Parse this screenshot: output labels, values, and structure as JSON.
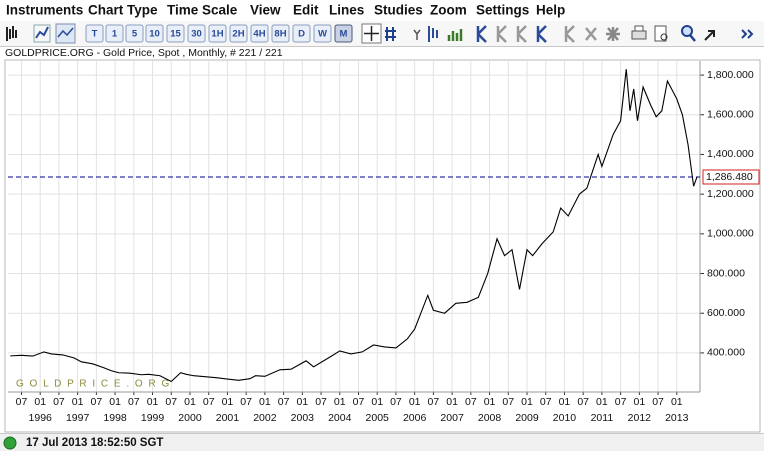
{
  "menu": [
    "Instruments",
    "Chart Type",
    "Time Scale",
    "View",
    "Edit",
    "Lines",
    "Studies",
    "Zoom",
    "Settings",
    "Help"
  ],
  "toolbar": {
    "buttons": [
      "T",
      "1",
      "5",
      "10",
      "15",
      "30",
      "1H",
      "2H",
      "4H",
      "8H",
      "D",
      "W",
      "M"
    ],
    "selected": "M"
  },
  "status": {
    "time": "17 Jul 2013 18:52:50 SGT"
  },
  "chart_data": {
    "type": "line",
    "title": "GOLDPRICE.ORG - Gold Price, Spot , Monthly, # 221 / 221",
    "watermark": "G O L D P R I C E . O R G",
    "color": "#000000",
    "x": [
      1995.2,
      1995.5,
      1995.8,
      1996.1,
      1996.3,
      1996.6,
      1996.9,
      1997.1,
      1997.4,
      1997.7,
      1997.9,
      1998.1,
      1998.4,
      1998.7,
      1998.9,
      1999.2,
      1999.5,
      1999.75,
      1999.9,
      2000.1,
      2000.4,
      2000.7,
      2001.0,
      2001.3,
      2001.6,
      2001.75,
      2002.0,
      2002.4,
      2002.7,
      2003.1,
      2003.3,
      2003.7,
      2004.0,
      2004.3,
      2004.6,
      2004.9,
      2005.2,
      2005.5,
      2005.8,
      2006.0,
      2006.35,
      2006.5,
      2006.8,
      2007.1,
      2007.4,
      2007.7,
      2007.95,
      2008.2,
      2008.4,
      2008.6,
      2008.8,
      2009.0,
      2009.15,
      2009.4,
      2009.7,
      2009.9,
      2010.1,
      2010.4,
      2010.6,
      2010.9,
      2011.0,
      2011.3,
      2011.5,
      2011.65,
      2011.75,
      2011.85,
      2011.95,
      2012.1,
      2012.3,
      2012.45,
      2012.6,
      2012.75,
      2013.0,
      2013.15,
      2013.3,
      2013.45,
      2013.54
    ],
    "values": [
      385,
      388,
      384,
      405,
      395,
      390,
      375,
      355,
      345,
      325,
      310,
      300,
      298,
      290,
      292,
      285,
      256,
      300,
      292,
      285,
      280,
      275,
      268,
      262,
      270,
      285,
      282,
      315,
      318,
      360,
      330,
      375,
      410,
      395,
      405,
      440,
      430,
      425,
      470,
      520,
      690,
      615,
      600,
      650,
      655,
      680,
      800,
      975,
      890,
      920,
      720,
      920,
      890,
      950,
      1010,
      1130,
      1090,
      1200,
      1230,
      1400,
      1340,
      1500,
      1570,
      1830,
      1620,
      1730,
      1570,
      1740,
      1650,
      1590,
      1620,
      1770,
      1680,
      1600,
      1450,
      1240,
      1286.48
    ],
    "reference_line": {
      "value": 1286.48,
      "label": "1,286.480",
      "color": "#00008b"
    },
    "xlim": [
      1995.14,
      2013.62
    ],
    "xticks": [
      {
        "value": 1995.5,
        "label": "07"
      },
      {
        "value": 1996,
        "label": "01"
      },
      {
        "value": 1996.5,
        "label": "07"
      },
      {
        "value": 1997,
        "label": "01"
      },
      {
        "value": 1997.5,
        "label": "07"
      },
      {
        "value": 1998,
        "label": "01"
      },
      {
        "value": 1998.5,
        "label": "07"
      },
      {
        "value": 1999,
        "label": "01"
      },
      {
        "value": 1999.5,
        "label": "07"
      },
      {
        "value": 2000,
        "label": "01"
      },
      {
        "value": 2000.5,
        "label": "07"
      },
      {
        "value": 2001,
        "label": "01"
      },
      {
        "value": 2001.5,
        "label": "07"
      },
      {
        "value": 2002,
        "label": "01"
      },
      {
        "value": 2002.5,
        "label": "07"
      },
      {
        "value": 2003,
        "label": "01"
      },
      {
        "value": 2003.5,
        "label": "07"
      },
      {
        "value": 2004,
        "label": "01"
      },
      {
        "value": 2004.5,
        "label": "07"
      },
      {
        "value": 2005,
        "label": "01"
      },
      {
        "value": 2005.5,
        "label": "07"
      },
      {
        "value": 2006,
        "label": "01"
      },
      {
        "value": 2006.5,
        "label": "07"
      },
      {
        "value": 2007,
        "label": "01"
      },
      {
        "value": 2007.5,
        "label": "07"
      },
      {
        "value": 2008,
        "label": "01"
      },
      {
        "value": 2008.5,
        "label": "07"
      },
      {
        "value": 2009,
        "label": "01"
      },
      {
        "value": 2009.5,
        "label": "07"
      },
      {
        "value": 2010,
        "label": "01"
      },
      {
        "value": 2010.5,
        "label": "07"
      },
      {
        "value": 2011,
        "label": "01"
      },
      {
        "value": 2011.5,
        "label": "07"
      },
      {
        "value": 2012,
        "label": "01"
      },
      {
        "value": 2012.5,
        "label": "07"
      },
      {
        "value": 2013,
        "label": "01"
      }
    ],
    "x_year_labels": [
      1996,
      1997,
      1998,
      1999,
      2000,
      2001,
      2002,
      2003,
      2004,
      2005,
      2006,
      2007,
      2008,
      2009,
      2010,
      2011,
      2012,
      2013
    ],
    "ylim": [
      203,
      1871
    ],
    "yticks": [
      {
        "value": 400,
        "label": "400.000"
      },
      {
        "value": 600,
        "label": "600.000"
      },
      {
        "value": 800,
        "label": "800.000"
      },
      {
        "value": 1000,
        "label": "1,000.000"
      },
      {
        "value": 1200,
        "label": "1,200.000"
      },
      {
        "value": 1400,
        "label": "1,400.000"
      },
      {
        "value": 1600,
        "label": "1,600.000"
      },
      {
        "value": 1800,
        "label": "1,800.000"
      }
    ],
    "grid": true
  }
}
